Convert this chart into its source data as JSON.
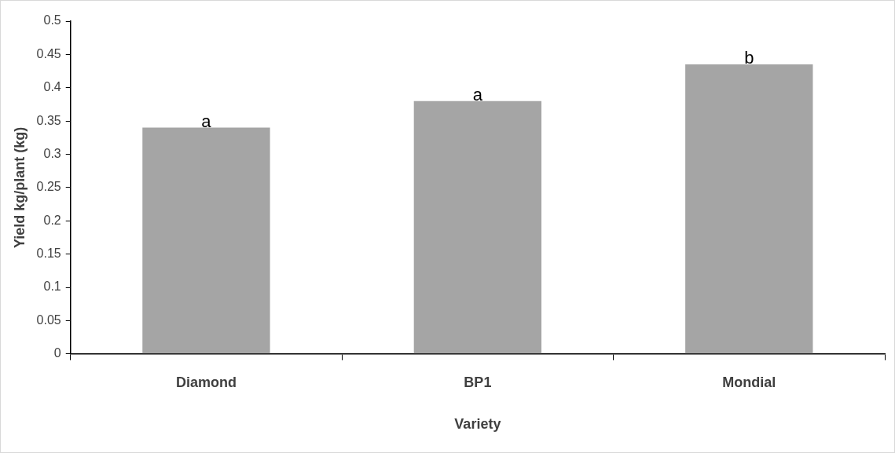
{
  "chart_data": {
    "type": "bar",
    "xlabel": "Variety",
    "ylabel": "Yield kg/plant (kg)",
    "categories": [
      "Diamond",
      "BP1",
      "Mondial"
    ],
    "values": [
      0.34,
      0.38,
      0.435
    ],
    "color": "#a5a5a5",
    "ylim": [
      0,
      0.5
    ],
    "yticks": [
      0,
      0.05,
      0.1,
      0.15,
      0.2,
      0.25,
      0.3,
      0.35,
      0.4,
      0.45,
      0.5
    ],
    "grid": false,
    "legend": false,
    "annotations": [
      {
        "text": "a",
        "x": "Diamond",
        "y": 0.34
      },
      {
        "text": "a",
        "x": "BP1",
        "y": 0.38
      },
      {
        "text": "b",
        "x": "Mondial",
        "y": 0.435
      }
    ]
  }
}
